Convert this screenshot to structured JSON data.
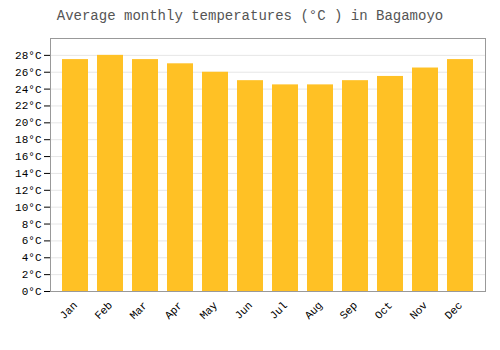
{
  "chart_data": {
    "type": "bar",
    "title": "Average monthly temperatures (°C ) in Bagamoyo",
    "categories": [
      "Jan",
      "Feb",
      "Mar",
      "Apr",
      "May",
      "Jun",
      "Jul",
      "Aug",
      "Sep",
      "Oct",
      "Nov",
      "Dec"
    ],
    "values": [
      27.5,
      28.0,
      27.5,
      27.0,
      26.0,
      25.0,
      24.5,
      24.5,
      25.0,
      25.5,
      26.5,
      27.5
    ],
    "color": "#FFC125",
    "ylim": [
      0,
      30
    ],
    "yticks": [
      {
        "value": 0,
        "label": "0°C"
      },
      {
        "value": 2,
        "label": "2°C"
      },
      {
        "value": 4,
        "label": "4°C"
      },
      {
        "value": 6,
        "label": "6°C"
      },
      {
        "value": 8,
        "label": "8°C"
      },
      {
        "value": 10,
        "label": "10°C"
      },
      {
        "value": 12,
        "label": "12°C"
      },
      {
        "value": 14,
        "label": "14°C"
      },
      {
        "value": 16,
        "label": "16°C"
      },
      {
        "value": 18,
        "label": "18°C"
      },
      {
        "value": 20,
        "label": "20°C"
      },
      {
        "value": 22,
        "label": "22°C"
      },
      {
        "value": 24,
        "label": "24°C"
      },
      {
        "value": 26,
        "label": "26°C"
      },
      {
        "value": 28,
        "label": "28°C"
      }
    ],
    "grid": true
  }
}
